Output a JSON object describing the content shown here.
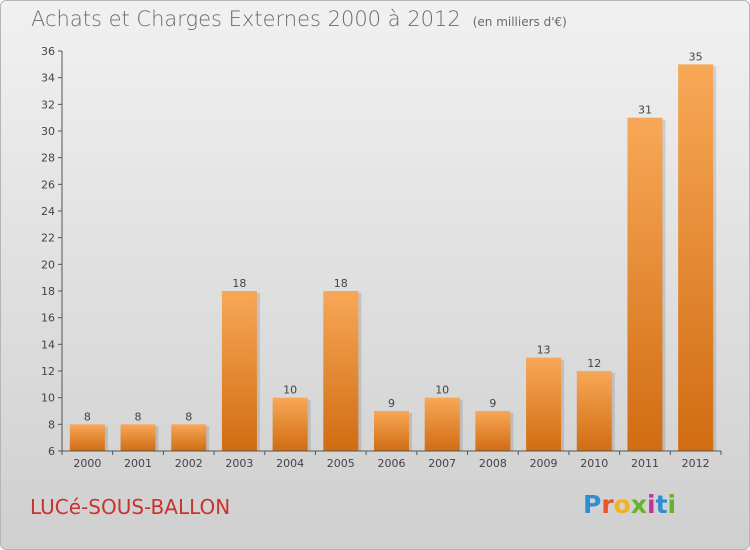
{
  "header": {
    "title": "Achats et Charges Externes 2000 à 2012",
    "unit": "(en milliers d'€)"
  },
  "footer": {
    "commune": "LUCé-SOUS-BALLON",
    "logo_text": "Proxiti"
  },
  "colors": {
    "bar_light": "#f7a857",
    "bar_dark": "#d16c12",
    "axis": "#555555",
    "label": "#444444"
  },
  "chart_data": {
    "type": "bar",
    "title": "Achats et Charges Externes 2000 à 2012",
    "subtitle": "(en milliers d'€)",
    "xlabel": "",
    "ylabel": "",
    "categories": [
      "2000",
      "2001",
      "2002",
      "2003",
      "2004",
      "2005",
      "2006",
      "2007",
      "2008",
      "2009",
      "2010",
      "2011",
      "2012"
    ],
    "values": [
      8,
      8,
      8,
      18,
      10,
      18,
      9,
      10,
      9,
      13,
      12,
      31,
      35
    ],
    "ylim": [
      6,
      36
    ],
    "yticks": [
      6,
      8,
      10,
      12,
      14,
      16,
      18,
      20,
      22,
      24,
      26,
      28,
      30,
      32,
      34,
      36
    ],
    "grid": false,
    "data_labels": true
  }
}
